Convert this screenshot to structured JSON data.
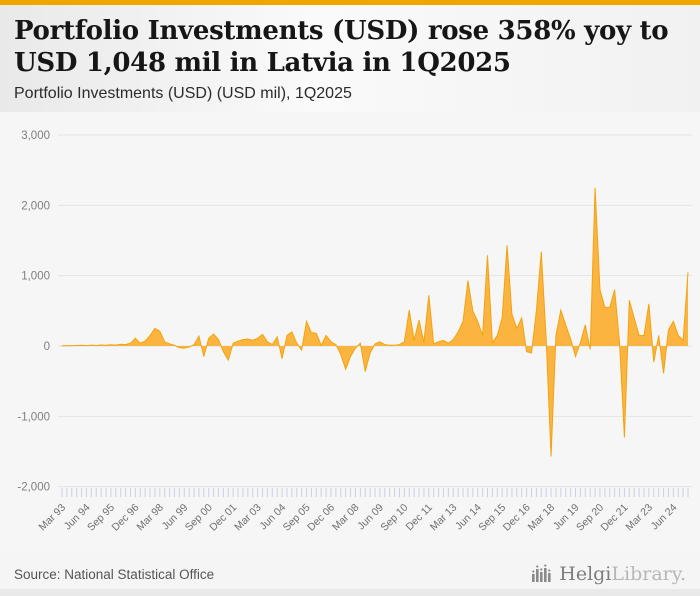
{
  "page": {
    "accent_color": "#F0A500"
  },
  "header": {
    "title": "Portfolio Investments (USD) rose 358% yoy to USD 1,048 mil in Latvia in 1Q2025",
    "subtitle": "Portfolio Investments (USD) (USD mil), 1Q2025"
  },
  "footer": {
    "source": "Source: National Statistical Office",
    "logo_text_primary": "Helgi",
    "logo_text_secondary": "Library."
  },
  "chart_data": {
    "type": "area",
    "series_name": "Portfolio Investments (USD)",
    "unit": "USD mil",
    "frequency": "quarterly",
    "start_period": "Mar 1993",
    "end_period": "Mar 2025",
    "latest_value": 1048,
    "values": [
      3,
      6,
      4,
      8,
      10,
      6,
      12,
      8,
      14,
      10,
      18,
      12,
      25,
      20,
      40,
      110,
      40,
      70,
      150,
      250,
      210,
      60,
      30,
      10,
      -25,
      -30,
      -15,
      20,
      140,
      -150,
      110,
      170,
      90,
      -80,
      -200,
      40,
      70,
      90,
      100,
      80,
      110,
      165,
      60,
      20,
      130,
      -180,
      150,
      200,
      40,
      -60,
      350,
      190,
      180,
      10,
      150,
      60,
      20,
      -120,
      -330,
      -150,
      -30,
      40,
      -365,
      -100,
      30,
      60,
      20,
      10,
      10,
      20,
      60,
      510,
      80,
      370,
      50,
      720,
      30,
      60,
      80,
      40,
      90,
      200,
      350,
      930,
      500,
      350,
      150,
      1290,
      50,
      150,
      400,
      1430,
      450,
      250,
      400,
      -80,
      -100,
      500,
      1340,
      100,
      -1570,
      150,
      510,
      300,
      100,
      -150,
      50,
      300,
      -50,
      2250,
      800,
      550,
      550,
      800,
      50,
      -1300,
      650,
      400,
      150,
      150,
      600,
      -230,
      150,
      -390,
      229,
      350,
      150,
      80,
      1048
    ],
    "x_tick_labels": [
      "Mar 93",
      "Jun 94",
      "Sep 95",
      "Dec 96",
      "Mar 98",
      "Jun 99",
      "Sep 00",
      "Dec 01",
      "Mar 03",
      "Jun 04",
      "Sep 05",
      "Dec 06",
      "Mar 08",
      "Jun 09",
      "Sep 10",
      "Dec 11",
      "Mar 13",
      "Jun 14",
      "Sep 15",
      "Dec 16",
      "Mar 18",
      "Jun 19",
      "Sep 20",
      "Dec 21",
      "Mar 23",
      "Jun 24"
    ],
    "x_label_every_n_ticks": 5,
    "y_ticks": [
      3000,
      2000,
      1000,
      0,
      -1000,
      -2000
    ],
    "ylim": [
      -2000,
      3000
    ],
    "grid": true,
    "legend": "none",
    "colors": {
      "area_fill": "#FBB440",
      "area_stroke": "#F2A30F",
      "gridline": "#e3e3e3",
      "tick_mark": "#c9d0e3",
      "axis_text": "#7f7f7f"
    }
  }
}
